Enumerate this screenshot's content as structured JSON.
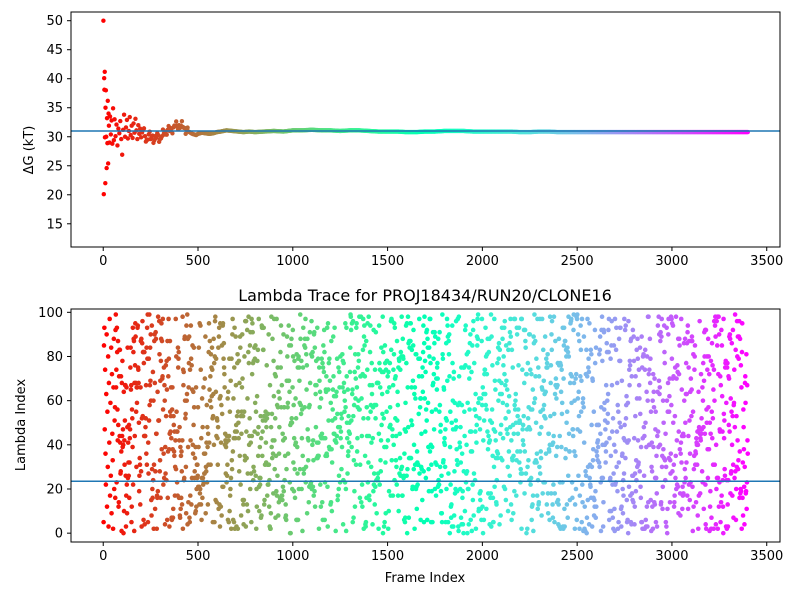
{
  "chart_data": [
    {
      "type": "scatter",
      "title": "",
      "xlabel": "",
      "ylabel": "ΔG (kT)",
      "xlim": [
        -170,
        3570
      ],
      "ylim": [
        11,
        51.5
      ],
      "xticks": [
        "0",
        "500",
        "1000",
        "1500",
        "2000",
        "2500",
        "3000",
        "3500"
      ],
      "yticks": [
        "15",
        "20",
        "25",
        "30",
        "35",
        "40",
        "45",
        "50"
      ],
      "grid": false,
      "legend": "none",
      "colormap": "rainbow",
      "reference_line": {
        "y": 31.0,
        "color": "#1f77b4"
      },
      "frames": 3400,
      "points": [
        [
          1,
          50.0
        ],
        [
          3,
          20.1
        ],
        [
          5,
          40.1
        ],
        [
          6,
          38.1
        ],
        [
          8,
          41.2
        ],
        [
          9,
          29.9
        ],
        [
          11,
          22.0
        ],
        [
          12,
          35.0
        ],
        [
          14,
          38.0
        ],
        [
          16,
          30.0
        ],
        [
          18,
          24.6
        ],
        [
          20,
          33.2
        ],
        [
          22,
          28.9
        ],
        [
          24,
          36.2
        ],
        [
          26,
          25.4
        ],
        [
          28,
          34.0
        ],
        [
          30,
          31.9
        ],
        [
          33,
          29.0
        ],
        [
          36,
          33.5
        ],
        [
          40,
          30.4
        ],
        [
          44,
          32.8
        ],
        [
          48,
          28.8
        ],
        [
          52,
          34.9
        ],
        [
          56,
          29.4
        ],
        [
          60,
          33.0
        ],
        [
          65,
          30.1
        ],
        [
          70,
          32.1
        ],
        [
          75,
          28.5
        ],
        [
          80,
          31.4
        ],
        [
          85,
          30.6
        ],
        [
          90,
          32.7
        ],
        [
          95,
          29.6
        ],
        [
          100,
          26.9
        ],
        [
          105,
          31.2
        ],
        [
          110,
          33.8
        ],
        [
          115,
          30.0
        ],
        [
          120,
          31.6
        ],
        [
          125,
          32.9
        ],
        [
          130,
          29.7
        ],
        [
          135,
          31.0
        ],
        [
          140,
          33.4
        ],
        [
          145,
          30.3
        ],
        [
          150,
          31.9
        ],
        [
          155,
          29.8
        ],
        [
          160,
          32.3
        ],
        [
          165,
          30.7
        ],
        [
          170,
          33.1
        ],
        [
          175,
          31.1
        ],
        [
          180,
          29.6
        ],
        [
          185,
          32.0
        ],
        [
          190,
          30.5
        ],
        [
          195,
          31.4
        ],
        [
          200,
          29.9
        ],
        [
          210,
          31.2
        ],
        [
          220,
          30.1
        ],
        [
          230,
          29.5
        ],
        [
          240,
          30.4
        ],
        [
          250,
          29.6
        ],
        [
          260,
          30.2
        ],
        [
          270,
          29.4
        ],
        [
          280,
          29.8
        ],
        [
          290,
          30.3
        ],
        [
          300,
          29.6
        ],
        [
          310,
          30.1
        ],
        [
          320,
          30.6
        ],
        [
          330,
          30.9
        ],
        [
          340,
          31.2
        ],
        [
          350,
          31.0
        ],
        [
          360,
          31.4
        ],
        [
          370,
          31.6
        ],
        [
          380,
          31.8
        ],
        [
          390,
          31.9
        ],
        [
          400,
          32.0
        ],
        [
          410,
          31.9
        ],
        [
          420,
          31.7
        ],
        [
          430,
          31.5
        ],
        [
          440,
          31.2
        ],
        [
          450,
          30.9
        ],
        [
          460,
          30.7
        ],
        [
          470,
          30.5
        ],
        [
          480,
          30.4
        ],
        [
          490,
          30.3
        ],
        [
          500,
          30.5
        ],
        [
          520,
          30.7
        ],
        [
          540,
          30.6
        ],
        [
          560,
          30.5
        ],
        [
          580,
          30.6
        ],
        [
          600,
          30.8
        ],
        [
          620,
          30.9
        ],
        [
          650,
          31.1
        ],
        [
          680,
          31.0
        ],
        [
          710,
          30.9
        ],
        [
          740,
          30.8
        ],
        [
          770,
          30.9
        ],
        [
          800,
          30.8
        ],
        [
          850,
          30.9
        ],
        [
          900,
          31.0
        ],
        [
          950,
          30.9
        ],
        [
          1000,
          31.1
        ],
        [
          1050,
          31.1
        ],
        [
          1100,
          31.2
        ],
        [
          1150,
          31.1
        ],
        [
          1200,
          31.1
        ],
        [
          1250,
          31.0
        ],
        [
          1300,
          31.1
        ],
        [
          1350,
          31.1
        ],
        [
          1400,
          31.0
        ],
        [
          1450,
          30.9
        ],
        [
          1500,
          30.9
        ],
        [
          1550,
          30.9
        ],
        [
          1600,
          30.8
        ],
        [
          1650,
          30.8
        ],
        [
          1700,
          30.9
        ],
        [
          1750,
          30.9
        ],
        [
          1800,
          31.0
        ],
        [
          1850,
          31.0
        ],
        [
          1900,
          31.0
        ],
        [
          1950,
          30.9
        ],
        [
          2000,
          30.9
        ],
        [
          2050,
          30.9
        ],
        [
          2100,
          30.9
        ],
        [
          2150,
          30.9
        ],
        [
          2200,
          30.8
        ],
        [
          2250,
          30.8
        ],
        [
          2300,
          30.9
        ],
        [
          2350,
          30.9
        ],
        [
          2400,
          30.8
        ],
        [
          2450,
          30.8
        ],
        [
          2500,
          30.8
        ],
        [
          2550,
          30.8
        ],
        [
          2600,
          30.8
        ],
        [
          2650,
          30.8
        ],
        [
          2700,
          30.8
        ],
        [
          2750,
          30.8
        ],
        [
          2800,
          30.8
        ],
        [
          2850,
          30.8
        ],
        [
          2900,
          30.8
        ],
        [
          2950,
          30.8
        ],
        [
          3000,
          30.8
        ],
        [
          3050,
          30.8
        ],
        [
          3100,
          30.8
        ],
        [
          3150,
          30.8
        ],
        [
          3200,
          30.8
        ],
        [
          3250,
          30.8
        ],
        [
          3300,
          30.8
        ],
        [
          3350,
          30.8
        ],
        [
          3400,
          30.8
        ]
      ]
    },
    {
      "type": "scatter",
      "title": "Lambda Trace for PROJ18434/RUN20/CLONE16",
      "xlabel": "Frame Index",
      "ylabel": "Lambda Index",
      "xlim": [
        -170,
        3570
      ],
      "ylim": [
        -4,
        101.5
      ],
      "xticks": [
        "0",
        "500",
        "1000",
        "1500",
        "2000",
        "2500",
        "3000",
        "3500"
      ],
      "yticks": [
        "0",
        "20",
        "40",
        "60",
        "80",
        "100"
      ],
      "grid": false,
      "legend": "none",
      "colormap": "rainbow",
      "reference_line": {
        "y": 23.5,
        "color": "#1f77b4"
      },
      "frames": 3400,
      "lambda_range": [
        0,
        99
      ],
      "points": [
        [
          2,
          5
        ],
        [
          4,
          85
        ],
        [
          6,
          93
        ],
        [
          8,
          47
        ],
        [
          10,
          74
        ],
        [
          12,
          36
        ],
        [
          14,
          22
        ],
        [
          16,
          63
        ],
        [
          18,
          90
        ],
        [
          20,
          12
        ],
        [
          22,
          55
        ],
        [
          24,
          30
        ],
        [
          26,
          80
        ],
        [
          28,
          3
        ],
        [
          30,
          68
        ],
        [
          32,
          41
        ],
        [
          34,
          97
        ],
        [
          36,
          17
        ],
        [
          38,
          59
        ],
        [
          40,
          26
        ],
        [
          42,
          84
        ],
        [
          44,
          9
        ],
        [
          46,
          72
        ],
        [
          48,
          45
        ],
        [
          50,
          33
        ],
        [
          52,
          2
        ],
        [
          54,
          66
        ],
        [
          56,
          88
        ],
        [
          58,
          20
        ],
        [
          60,
          51
        ]
      ]
    }
  ],
  "axes": {
    "top": {
      "ylabel": "ΔG (kT)"
    },
    "bottom": {
      "title": "Lambda Trace for PROJ18434/RUN20/CLONE16",
      "xlabel": "Frame Index",
      "ylabel": "Lambda Index"
    }
  },
  "colors": {
    "reference_line": "#1f77b4",
    "axes": "#000000",
    "background": "#ffffff"
  }
}
